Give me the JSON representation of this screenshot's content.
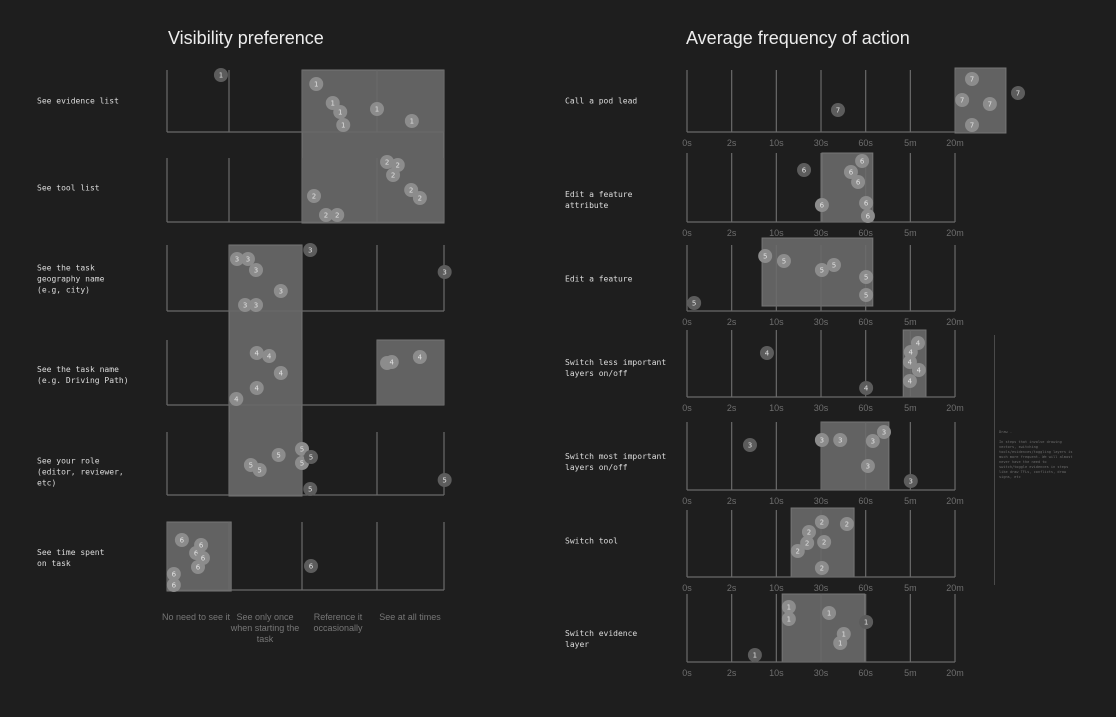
{
  "colors": {
    "background": "#1e1e1e",
    "axis": "#6a6a6a",
    "range_box": "#626262",
    "dot_in_range": "#8c8c8c",
    "dot_outlier": "#5c5c5c"
  },
  "visibility": {
    "title": "Visibility preference",
    "columns": [
      "No need to see it",
      "See only once when starting the task",
      "Reference it occasionally",
      "See at all times"
    ],
    "rows": [
      {
        "label": "See evidence list",
        "range": [
          2,
          4
        ],
        "dots": [
          {
            "x": 0.87,
            "n": "1"
          },
          {
            "x": 2.19,
            "n": "1"
          },
          {
            "x": 2.41,
            "n": "1"
          },
          {
            "x": 2.51,
            "n": "1"
          },
          {
            "x": 2.55,
            "n": "1"
          },
          {
            "x": 3.0,
            "n": "1"
          },
          {
            "x": 3.52,
            "n": "1"
          }
        ]
      },
      {
        "label": "See tool list",
        "range": [
          2,
          4
        ],
        "dots": [
          {
            "x": 3.15,
            "n": "2"
          },
          {
            "x": 3.24,
            "n": "2"
          },
          {
            "x": 3.31,
            "n": "2"
          },
          {
            "x": 3.51,
            "n": "2"
          },
          {
            "x": 3.64,
            "n": "2"
          },
          {
            "x": 2.16,
            "n": "2"
          },
          {
            "x": 2.32,
            "n": "2"
          },
          {
            "x": 2.47,
            "n": "2"
          }
        ]
      },
      {
        "label": "See the task\ngeography name\n(e.g, city)",
        "range": [
          1,
          2
        ],
        "dots": [
          {
            "x": 2.11,
            "n": "3"
          },
          {
            "x": 1.11,
            "n": "3"
          },
          {
            "x": 1.26,
            "n": "3"
          },
          {
            "x": 1.37,
            "n": "3"
          },
          {
            "x": 1.71,
            "n": "3"
          },
          {
            "x": 1.22,
            "n": "3"
          },
          {
            "x": 1.37,
            "n": "3"
          },
          {
            "x": 4.01,
            "n": "3"
          }
        ]
      },
      {
        "label": "See the task name\n(e.g. Driving Path)",
        "range": [
          1,
          2
        ],
        "range2": [
          3,
          4
        ],
        "dots": [
          {
            "x": 1.38,
            "n": "4"
          },
          {
            "x": 1.55,
            "n": "4"
          },
          {
            "x": 1.71,
            "n": "4"
          },
          {
            "x": 1.38,
            "n": "4"
          },
          {
            "x": 1.1,
            "n": "4"
          },
          {
            "x": 3.15,
            "n": "4"
          },
          {
            "x": 3.22,
            "n": "4"
          },
          {
            "x": 3.64,
            "n": "4"
          }
        ]
      },
      {
        "label": "See your role\n(editor, reviewer,\netc)",
        "range": [
          1,
          2
        ],
        "dots": [
          {
            "x": 1.3,
            "n": "5"
          },
          {
            "x": 1.42,
            "n": "5"
          },
          {
            "x": 1.68,
            "n": "5"
          },
          {
            "x": 2.0,
            "n": "5"
          },
          {
            "x": 2.0,
            "n": "5"
          },
          {
            "x": 2.12,
            "n": "5"
          },
          {
            "x": 2.11,
            "n": "5"
          },
          {
            "x": 4.01,
            "n": "5"
          }
        ]
      },
      {
        "label": "See time spent\non task",
        "range": [
          0,
          1.03
        ],
        "dots": [
          {
            "x": 0.24,
            "n": "6"
          },
          {
            "x": 0.47,
            "n": "6"
          },
          {
            "x": 0.55,
            "n": "6"
          },
          {
            "x": 0.58,
            "n": "6"
          },
          {
            "x": 0.5,
            "n": "6"
          },
          {
            "x": 0.11,
            "n": "6"
          },
          {
            "x": 0.11,
            "n": "6"
          },
          {
            "x": 2.12,
            "n": "6"
          }
        ]
      }
    ]
  },
  "frequency": {
    "title": "Average frequency of action",
    "ticks": [
      "0s",
      "2s",
      "10s",
      "30s",
      "60s",
      "5m",
      "20m"
    ],
    "rows": [
      {
        "label": "Call a pod lead",
        "range": [
          "20m",
          ">20m"
        ],
        "range_idx": [
          6,
          7.14
        ],
        "dots": [
          {
            "x": 3.38,
            "n": "7"
          },
          {
            "x": 6.38,
            "n": "7"
          },
          {
            "x": 6.16,
            "n": "7"
          },
          {
            "x": 6.78,
            "n": "7"
          },
          {
            "x": 6.38,
            "n": "7"
          },
          {
            "x": 7.41,
            "n": "7"
          }
        ]
      },
      {
        "label": "Edit a feature\nattribute",
        "range_idx": [
          3.02,
          4.16
        ],
        "dots": [
          {
            "x": 2.62,
            "n": "6"
          },
          {
            "x": 3.92,
            "n": "6"
          },
          {
            "x": 3.67,
            "n": "6"
          },
          {
            "x": 3.83,
            "n": "6"
          },
          {
            "x": 3.02,
            "n": "6"
          },
          {
            "x": 4.01,
            "n": "6"
          },
          {
            "x": 4.05,
            "n": "6"
          }
        ]
      },
      {
        "label": "Edit a feature",
        "range_idx": [
          1.68,
          4.16
        ],
        "dots": [
          {
            "x": 1.75,
            "n": "5"
          },
          {
            "x": 2.17,
            "n": "5"
          },
          {
            "x": 3.02,
            "n": "5"
          },
          {
            "x": 3.29,
            "n": "5"
          },
          {
            "x": 4.01,
            "n": "5"
          },
          {
            "x": 4.01,
            "n": "5"
          },
          {
            "x": 0.16,
            "n": "5"
          }
        ]
      },
      {
        "label": "Switch less important\nlayers on/off",
        "range_idx": [
          4.84,
          5.35
        ],
        "dots": [
          {
            "x": 1.79,
            "n": "4"
          },
          {
            "x": 5.17,
            "n": "4"
          },
          {
            "x": 5.01,
            "n": "4"
          },
          {
            "x": 4.99,
            "n": "4"
          },
          {
            "x": 5.19,
            "n": "4"
          },
          {
            "x": 4.99,
            "n": "4"
          },
          {
            "x": 4.01,
            "n": "4"
          }
        ]
      },
      {
        "label": "Switch most important\nlayers on/off",
        "range_idx": [
          3.0,
          4.52
        ],
        "dots": [
          {
            "x": 1.41,
            "n": "3"
          },
          {
            "x": 3.02,
            "n": "3"
          },
          {
            "x": 3.43,
            "n": "3"
          },
          {
            "x": 4.16,
            "n": "3"
          },
          {
            "x": 4.41,
            "n": "3"
          },
          {
            "x": 4.05,
            "n": "3"
          },
          {
            "x": 5.01,
            "n": "3"
          }
        ]
      },
      {
        "label": "Switch tool",
        "range_idx": [
          2.33,
          3.74
        ],
        "dots": [
          {
            "x": 3.02,
            "n": "2"
          },
          {
            "x": 3.58,
            "n": "2"
          },
          {
            "x": 2.73,
            "n": "2"
          },
          {
            "x": 2.69,
            "n": "2"
          },
          {
            "x": 3.07,
            "n": "2"
          },
          {
            "x": 2.48,
            "n": "2"
          },
          {
            "x": 3.02,
            "n": "2"
          }
        ]
      },
      {
        "label": "Switch evidence\nlayer",
        "range_idx": [
          2.13,
          3.98
        ],
        "dots": [
          {
            "x": 2.28,
            "n": "1"
          },
          {
            "x": 2.28,
            "n": "1"
          },
          {
            "x": 3.18,
            "n": "1"
          },
          {
            "x": 4.01,
            "n": "1"
          },
          {
            "x": 3.51,
            "n": "1"
          },
          {
            "x": 3.43,
            "n": "1"
          },
          {
            "x": 1.52,
            "n": "1"
          }
        ]
      }
    ]
  },
  "note": {
    "heading": "Draw -",
    "body": "In steps that involve drawing vectors, switching tools/evidences/toggling layers is much more frequent. We will almost never have the need to switch/toggle evidences in steps like draw TFLs, conflicts, draw signs, etc"
  }
}
